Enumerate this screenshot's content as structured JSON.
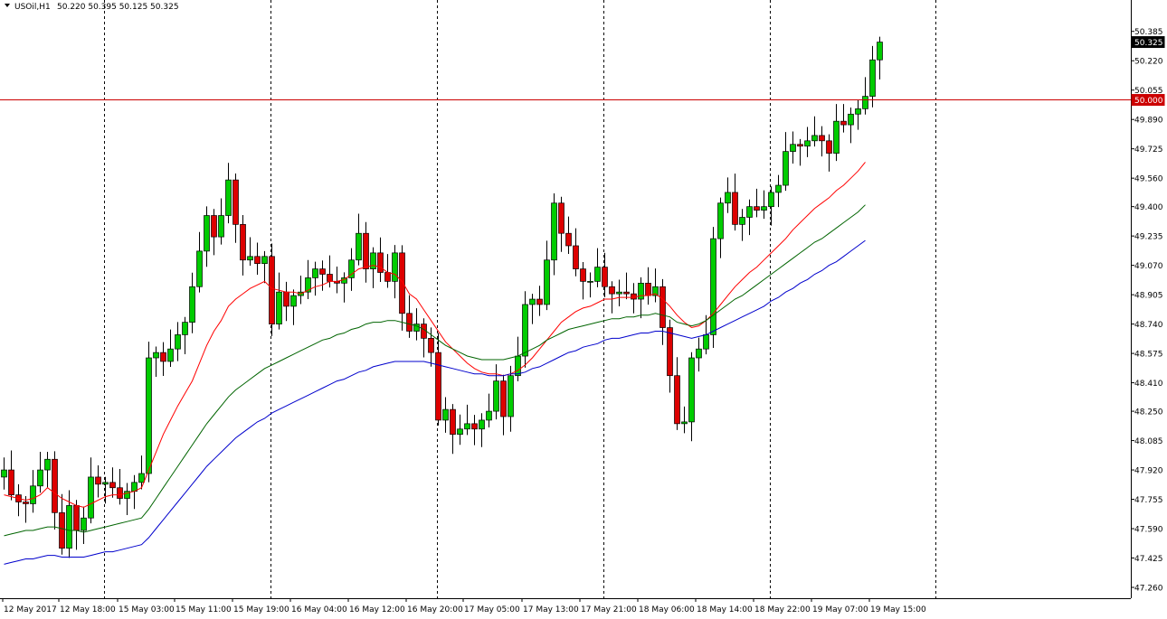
{
  "header": {
    "symbol": "USOil,H1",
    "ohlc": "50.220 50.395 50.125 50.325",
    "collapse_icon": "triangle-down-icon"
  },
  "price_badges": {
    "current": "50.325",
    "level": "50.000"
  },
  "colors": {
    "bull_candle": "#00cc00",
    "bear_candle": "#dd0000",
    "ema_red": "#ff0000",
    "ema_green": "#006400",
    "ema_blue": "#0000cc",
    "level_line": "#cc0000",
    "price_badge": "#000000"
  },
  "chart_data": {
    "type": "candlestick",
    "symbol": "USOil",
    "timeframe": "H1",
    "ylim": [
      47.26,
      50.47
    ],
    "y_ticks": [
      47.26,
      47.425,
      47.59,
      47.755,
      47.92,
      48.085,
      48.25,
      48.41,
      48.575,
      48.74,
      48.905,
      49.07,
      49.235,
      49.4,
      49.56,
      49.725,
      49.89,
      50.055,
      50.22,
      50.385
    ],
    "y_tick_labels": [
      "47.260",
      "47.425",
      "47.590",
      "47.755",
      "47.920",
      "48.085",
      "48.250",
      "48.410",
      "48.575",
      "48.740",
      "48.905",
      "49.070",
      "49.235",
      "49.400",
      "49.560",
      "49.725",
      "49.890",
      "50.055",
      "50.220",
      "50.385"
    ],
    "x_labels": [
      "12 May 2017",
      "12 May 18:00",
      "15 May 03:00",
      "15 May 11:00",
      "15 May 19:00",
      "16 May 04:00",
      "16 May 12:00",
      "16 May 20:00",
      "17 May 05:00",
      "17 May 13:00",
      "17 May 21:00",
      "18 May 06:00",
      "18 May 14:00",
      "18 May 22:00",
      "19 May 07:00",
      "19 May 15:00"
    ],
    "horizontal_level": 50.0,
    "current_price": 50.325,
    "closes": [
      47.92,
      47.78,
      47.74,
      47.73,
      47.83,
      47.92,
      47.98,
      47.68,
      47.48,
      47.72,
      47.58,
      47.65,
      47.88,
      47.84,
      47.85,
      47.82,
      47.76,
      47.8,
      47.85,
      47.9,
      48.55,
      48.58,
      48.53,
      48.6,
      48.68,
      48.75,
      48.95,
      49.15,
      49.35,
      49.23,
      49.35,
      49.55,
      49.3,
      49.1,
      49.12,
      49.08,
      49.12,
      48.74,
      48.92,
      48.84,
      48.9,
      48.92,
      49.0,
      49.05,
      49.02,
      48.98,
      48.97,
      49.0,
      49.1,
      49.25,
      49.05,
      49.14,
      49.03,
      48.98,
      49.14,
      48.8,
      48.7,
      48.74,
      48.66,
      48.58,
      48.2,
      48.26,
      48.12,
      48.15,
      48.18,
      48.15,
      48.2,
      48.25,
      48.42,
      48.22,
      48.45,
      48.56,
      48.85,
      48.88,
      48.85,
      49.1,
      49.42,
      49.25,
      49.18,
      49.05,
      48.98,
      48.98,
      49.06,
      48.95,
      48.91,
      48.92,
      48.91,
      48.88,
      48.97,
      48.9,
      48.95,
      48.72,
      48.45,
      48.18,
      48.19,
      48.55,
      48.6,
      48.68,
      49.22,
      49.42,
      49.48,
      49.3,
      49.34,
      49.4,
      49.38,
      49.4,
      49.48,
      49.52,
      49.71,
      49.75,
      49.74,
      49.77,
      49.8,
      49.77,
      49.7,
      49.88,
      49.86,
      49.92,
      49.95,
      50.02,
      50.225,
      50.325
    ],
    "series": [
      {
        "type": "line",
        "values": [
          47.78,
          47.77,
          47.76,
          47.75,
          47.76,
          47.78,
          47.82,
          47.79,
          47.76,
          47.74,
          47.72,
          47.71,
          47.73,
          47.75,
          47.77,
          47.78,
          47.78,
          47.79,
          47.8,
          47.82,
          47.92,
          48.02,
          48.12,
          48.2,
          48.28,
          48.35,
          48.42,
          48.52,
          48.62,
          48.7,
          48.76,
          48.84,
          48.88,
          48.91,
          48.94,
          48.96,
          48.98,
          48.94,
          48.93,
          48.92,
          48.92,
          48.91,
          48.93,
          48.95,
          48.96,
          48.98,
          48.98,
          48.99,
          49.02,
          49.05,
          49.06,
          49.07,
          49.06,
          49.03,
          49.02,
          48.98,
          48.91,
          48.88,
          48.82,
          48.76,
          48.7,
          48.64,
          48.6,
          48.56,
          48.52,
          48.49,
          48.47,
          48.46,
          48.46,
          48.45,
          48.46,
          48.48,
          48.51,
          48.55,
          48.6,
          48.65,
          48.7,
          48.75,
          48.78,
          48.81,
          48.83,
          48.84,
          48.86,
          48.88,
          48.88,
          48.89,
          48.89,
          48.89,
          48.9,
          48.9,
          48.91,
          48.88,
          48.84,
          48.79,
          48.75,
          48.72,
          48.73,
          48.76,
          48.8,
          48.85,
          48.9,
          48.95,
          48.99,
          49.03,
          49.06,
          49.1,
          49.14,
          49.18,
          49.22,
          49.27,
          49.31,
          49.35,
          49.39,
          49.42,
          49.45,
          49.49,
          49.52,
          49.56,
          49.6,
          49.65
        ]
      },
      {
        "type": "line",
        "values": [
          47.55,
          47.56,
          47.57,
          47.58,
          47.58,
          47.59,
          47.6,
          47.6,
          47.59,
          47.58,
          47.58,
          47.57,
          47.58,
          47.59,
          47.6,
          47.61,
          47.62,
          47.63,
          47.64,
          47.65,
          47.7,
          47.76,
          47.82,
          47.88,
          47.94,
          48.0,
          48.06,
          48.12,
          48.18,
          48.23,
          48.28,
          48.33,
          48.37,
          48.4,
          48.43,
          48.46,
          48.49,
          48.51,
          48.53,
          48.55,
          48.57,
          48.59,
          48.61,
          48.63,
          48.65,
          48.66,
          48.68,
          48.69,
          48.71,
          48.72,
          48.74,
          48.75,
          48.75,
          48.76,
          48.76,
          48.75,
          48.74,
          48.73,
          48.71,
          48.68,
          48.65,
          48.62,
          48.6,
          48.58,
          48.56,
          48.55,
          48.54,
          48.54,
          48.54,
          48.54,
          48.55,
          48.56,
          48.58,
          48.6,
          48.62,
          48.65,
          48.67,
          48.69,
          48.71,
          48.72,
          48.73,
          48.74,
          48.75,
          48.76,
          48.77,
          48.77,
          48.78,
          48.78,
          48.79,
          48.79,
          48.8,
          48.79,
          48.78,
          48.75,
          48.74,
          48.73,
          48.74,
          48.76,
          48.79,
          48.82,
          48.85,
          48.88,
          48.9,
          48.93,
          48.96,
          48.99,
          49.02,
          49.05,
          49.08,
          49.11,
          49.14,
          49.17,
          49.2,
          49.22,
          49.25,
          49.28,
          49.31,
          49.34,
          49.37,
          49.41
        ]
      },
      {
        "type": "line",
        "values": [
          47.39,
          47.4,
          47.41,
          47.42,
          47.42,
          47.43,
          47.44,
          47.44,
          47.43,
          47.43,
          47.43,
          47.43,
          47.44,
          47.45,
          47.46,
          47.46,
          47.47,
          47.48,
          47.49,
          47.5,
          47.54,
          47.59,
          47.64,
          47.69,
          47.74,
          47.79,
          47.84,
          47.89,
          47.94,
          47.98,
          48.02,
          48.06,
          48.1,
          48.13,
          48.16,
          48.19,
          48.21,
          48.24,
          48.26,
          48.28,
          48.3,
          48.32,
          48.34,
          48.36,
          48.38,
          48.4,
          48.42,
          48.43,
          48.45,
          48.47,
          48.48,
          48.5,
          48.51,
          48.52,
          48.53,
          48.53,
          48.53,
          48.53,
          48.53,
          48.52,
          48.51,
          48.5,
          48.49,
          48.48,
          48.47,
          48.46,
          48.46,
          48.45,
          48.45,
          48.45,
          48.46,
          48.46,
          48.47,
          48.49,
          48.5,
          48.52,
          48.54,
          48.56,
          48.58,
          48.59,
          48.61,
          48.62,
          48.63,
          48.65,
          48.66,
          48.66,
          48.67,
          48.68,
          48.69,
          48.69,
          48.7,
          48.7,
          48.69,
          48.68,
          48.67,
          48.66,
          48.67,
          48.68,
          48.7,
          48.72,
          48.74,
          48.76,
          48.78,
          48.8,
          48.82,
          48.84,
          48.87,
          48.89,
          48.92,
          48.94,
          48.97,
          48.99,
          49.02,
          49.04,
          49.07,
          49.09,
          49.12,
          49.15,
          49.18,
          49.21
        ]
      }
    ]
  }
}
